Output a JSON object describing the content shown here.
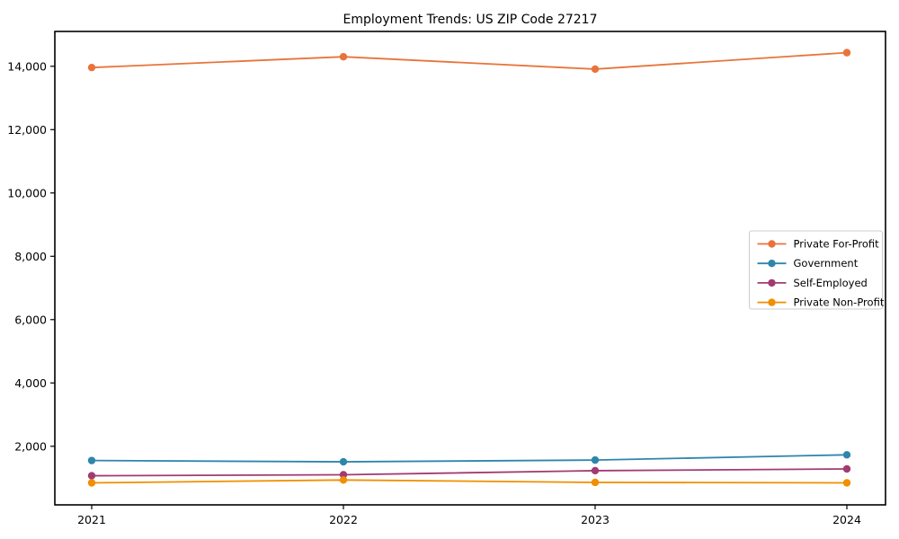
{
  "chart_data": {
    "type": "line",
    "title": "Employment Trends: US ZIP Code 27217",
    "xlabel": "",
    "ylabel": "",
    "categories": [
      "2021",
      "2022",
      "2023",
      "2024"
    ],
    "series": [
      {
        "name": "Private For-Profit",
        "color": "#E8743B",
        "values": [
          13960,
          14300,
          13910,
          14430
        ]
      },
      {
        "name": "Government",
        "color": "#2E86AB",
        "values": [
          1550,
          1510,
          1565,
          1730
        ]
      },
      {
        "name": "Self-Employed",
        "color": "#A23B72",
        "values": [
          1070,
          1100,
          1230,
          1285
        ]
      },
      {
        "name": "Private Non-Profit",
        "color": "#F18F01",
        "values": [
          845,
          935,
          860,
          845
        ]
      }
    ],
    "yticks": [
      2000,
      4000,
      6000,
      8000,
      10000,
      12000,
      14000
    ],
    "ytick_labels": [
      "2,000",
      "4,000",
      "6,000",
      "8,000",
      "10,000",
      "12,000",
      "14,000"
    ],
    "ylim": [
      150,
      15100
    ],
    "grid": false,
    "legend_position": "center right",
    "marker": "circle"
  }
}
